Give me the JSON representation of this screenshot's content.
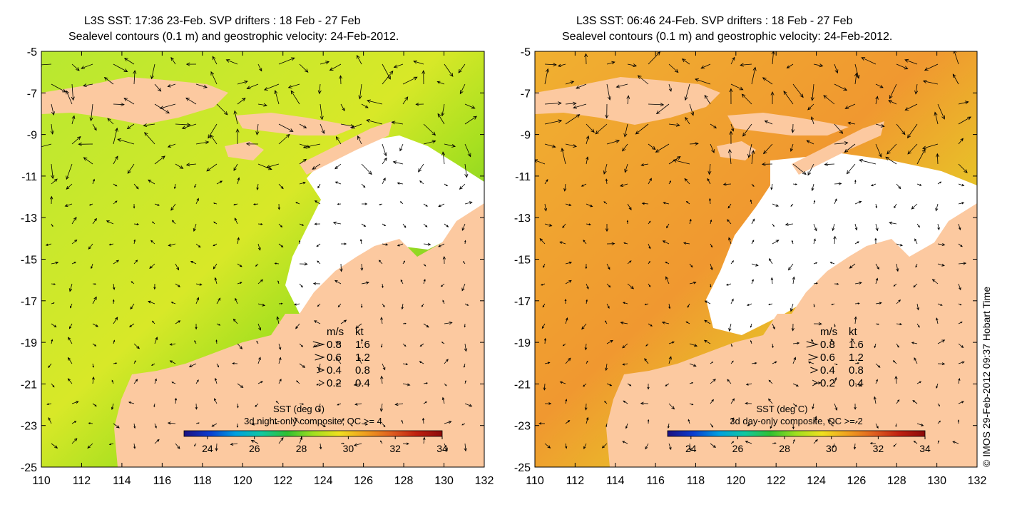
{
  "credit": "© IMOS 29-Feb-2012 09:37 Hobart Time",
  "colors": {
    "land": "#fcc9a0",
    "nodata": "#ffffff",
    "colormap": [
      "#1c1080",
      "#0a3cd0",
      "#00a0e0",
      "#10c8a0",
      "#30c030",
      "#a0e020",
      "#f0e020",
      "#f0a020",
      "#e06020",
      "#c02010",
      "#8c0a0a"
    ]
  },
  "panels": [
    {
      "title_line1": "L3S SST: 17:36 23-Feb. SVP drifters : 18 Feb - 27 Feb",
      "title_line2": "Sealevel contours (0.1 m) and geostrophic velocity: 24-Feb-2012.",
      "sst_label": "SST (deg C)",
      "composite_label": "3d night-only composite, QC >= 4",
      "colorbar_range": [
        23,
        34
      ],
      "colorbar_ticks": [
        "24",
        "26",
        "28",
        "30",
        "32",
        "34"
      ],
      "field_tint": "#a0e020",
      "legend": {
        "header_ms": "m/s",
        "header_kt": "kt",
        "rows": [
          {
            "ms": "0.8",
            "kt": "1.6"
          },
          {
            "ms": "0.6",
            "kt": "1.2"
          },
          {
            "ms": "0.4",
            "kt": "0.8"
          },
          {
            "ms": "0.2",
            "kt": "0.4"
          }
        ]
      }
    },
    {
      "title_line1": "L3S SST: 06:46 24-Feb. SVP drifters : 18 Feb - 27 Feb",
      "title_line2": "Sealevel contours (0.1 m) and geostrophic velocity: 24-Feb-2012.",
      "sst_label": "SST (deg C)",
      "composite_label": "3d day-only composite, QC >= 2",
      "colorbar_range": [
        23,
        34
      ],
      "colorbar_ticks": [
        "24",
        "26",
        "28",
        "30",
        "32",
        "34"
      ],
      "field_tint": "#f0a020",
      "legend": {
        "header_ms": "m/s",
        "header_kt": "kt",
        "rows": [
          {
            "ms": "0.8",
            "kt": "1.6"
          },
          {
            "ms": "0.6",
            "kt": "1.2"
          },
          {
            "ms": "0.4",
            "kt": "0.8"
          },
          {
            "ms": "0.2",
            "kt": "0.4"
          }
        ]
      }
    }
  ],
  "axes": {
    "x_ticks": [
      "110",
      "112",
      "114",
      "116",
      "118",
      "120",
      "122",
      "124",
      "126",
      "128",
      "130",
      "132"
    ],
    "y_ticks": [
      "-5",
      "-7",
      "-9",
      "-11",
      "-13",
      "-15",
      "-17",
      "-19",
      "-21",
      "-23",
      "-25"
    ],
    "lon_range": [
      110,
      132
    ],
    "lat_range": [
      -25,
      -5
    ]
  }
}
